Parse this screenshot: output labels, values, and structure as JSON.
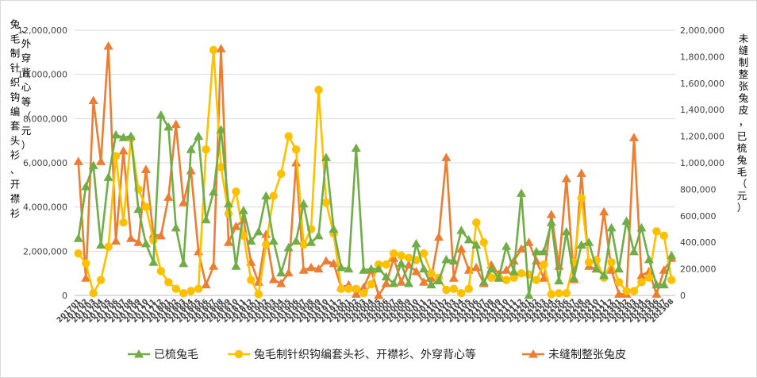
{
  "chart_data": {
    "type": "line",
    "title": "",
    "ylabel": "兔毛制针织钩编套头衫、开襟衫、外穿背心等（元）",
    "y2label": "未缝制整张兔皮，已梳兔毛（元）",
    "ylim": [
      0,
      12000000
    ],
    "y2lim": [
      0,
      2000000
    ],
    "yticks": [
      "0",
      "2,000,000",
      "4,000,000",
      "6,000,000",
      "8,000,000",
      "10,000,000",
      "12,000,000"
    ],
    "y2ticks": [
      "0",
      "200,000",
      "400,000",
      "600,000",
      "800,000",
      "1,000,000",
      "1,200,000",
      "1,400,000",
      "1,600,000",
      "1,800,000",
      "2,000,000"
    ],
    "grid": true,
    "legend_position": "bottom",
    "x": [
      "201701",
      "201702",
      "201703",
      "201704",
      "201705",
      "201706",
      "201707",
      "201708",
      "201709",
      "201710",
      "201711",
      "201712",
      "201801",
      "201802",
      "201803",
      "201804",
      "201805",
      "201806",
      "201807",
      "201808",
      "201809",
      "201810",
      "201811",
      "201812",
      "201901",
      "201902",
      "201903",
      "201904",
      "201905",
      "201906",
      "201907",
      "201908",
      "201909",
      "201910",
      "201911",
      "201912",
      "202001",
      "202002",
      "202003",
      "202004",
      "202005",
      "202006",
      "202007",
      "202008",
      "202009",
      "202010",
      "202011",
      "202012",
      "202101",
      "202102",
      "202103",
      "202104",
      "202105",
      "202106",
      "202107",
      "202108",
      "202109",
      "202110",
      "202111",
      "202112",
      "202201",
      "202202",
      "202203",
      "202204",
      "202205",
      "202206",
      "202207",
      "202208",
      "202209",
      "202210",
      "202211",
      "202212",
      "202301",
      "202302",
      "202303",
      "202304",
      "202305",
      "202306",
      "202307",
      "202308"
    ],
    "series": [
      {
        "name": "已梳兔毛",
        "axis": "right",
        "color": "#70ad47",
        "marker": "triangle",
        "values": [
          430000,
          820000,
          980000,
          380000,
          890000,
          1210000,
          1190000,
          1200000,
          650000,
          390000,
          250000,
          1360000,
          1270000,
          510000,
          240000,
          1100000,
          1200000,
          570000,
          780000,
          1250000,
          690000,
          220000,
          640000,
          410000,
          480000,
          750000,
          410000,
          170000,
          360000,
          410000,
          690000,
          400000,
          450000,
          1040000,
          500000,
          210000,
          200000,
          1110000,
          190000,
          200000,
          200000,
          140000,
          90000,
          240000,
          90000,
          390000,
          200000,
          80000,
          110000,
          270000,
          260000,
          490000,
          420000,
          380000,
          100000,
          200000,
          130000,
          370000,
          180000,
          770000,
          0,
          330000,
          330000,
          550000,
          110000,
          480000,
          130000,
          380000,
          400000,
          200000,
          150000,
          510000,
          200000,
          560000,
          330000,
          510000,
          270000,
          80000,
          80000,
          300000
        ]
      },
      {
        "name": "兔毛制针织钩编套头衫、开襟衫、外穿背心等",
        "axis": "left",
        "color": "#ffc000",
        "marker": "circle",
        "values": [
          1900000,
          1450000,
          100000,
          700000,
          2200000,
          6300000,
          3300000,
          7100000,
          4800000,
          4000000,
          2500000,
          1100000,
          600000,
          300000,
          100000,
          200000,
          300000,
          6600000,
          11100000,
          5800000,
          3700000,
          4700000,
          2700000,
          700000,
          50000,
          2300000,
          4500000,
          5500000,
          7200000,
          6600000,
          2300000,
          3000000,
          9300000,
          4200000,
          2800000,
          300000,
          300000,
          300000,
          100000,
          500000,
          1400000,
          1400000,
          1900000,
          1800000,
          1700000,
          1600000,
          1900000,
          1000000,
          800000,
          250000,
          300000,
          100000,
          300000,
          3300000,
          2400000,
          800000,
          800000,
          700000,
          800000,
          1000000,
          950000,
          700000,
          1400000,
          50000,
          100000,
          100000,
          1500000,
          4400000,
          1500000,
          1600000,
          800000,
          1500000,
          600000,
          200000,
          200000,
          600000,
          800000,
          2900000,
          2700000,
          700000
        ]
      },
      {
        "name": "未缝制整张兔皮",
        "axis": "right",
        "color": "#ed7d31",
        "marker": "triangle",
        "values": [
          1010000,
          130000,
          1470000,
          1010000,
          1880000,
          410000,
          1090000,
          430000,
          400000,
          950000,
          460000,
          450000,
          740000,
          1290000,
          700000,
          940000,
          330000,
          80000,
          220000,
          1860000,
          400000,
          520000,
          570000,
          250000,
          100000,
          460000,
          120000,
          90000,
          170000,
          1000000,
          190000,
          210000,
          200000,
          260000,
          240000,
          60000,
          80000,
          10000,
          60000,
          190000,
          0,
          90000,
          280000,
          100000,
          230000,
          180000,
          100000,
          130000,
          440000,
          1040000,
          130000,
          350000,
          190000,
          210000,
          90000,
          230000,
          160000,
          190000,
          260000,
          350000,
          400000,
          260000,
          130000,
          610000,
          220000,
          880000,
          120000,
          920000,
          220000,
          200000,
          630000,
          190000,
          10000,
          10000,
          1190000,
          150000,
          180000,
          10000,
          190000,
          280000
        ]
      }
    ]
  },
  "legend": {
    "items": [
      {
        "label": "已梳兔毛",
        "color": "#70ad47",
        "marker": "triangle"
      },
      {
        "label": "兔毛制针织钩编套头衫、开襟衫、外穿背心等",
        "color": "#ffc000",
        "marker": "circle"
      },
      {
        "label": "未缝制整张兔皮",
        "color": "#ed7d31",
        "marker": "triangle"
      }
    ]
  }
}
